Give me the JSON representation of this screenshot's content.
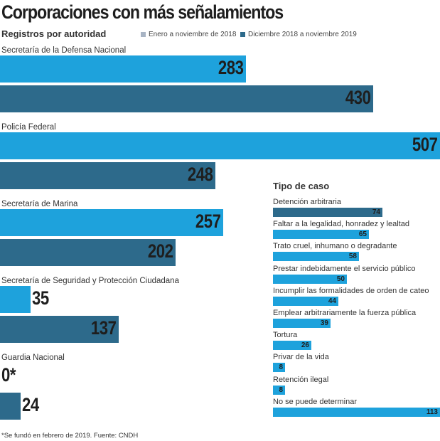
{
  "title": "Corporaciones con más señalamientos",
  "subtitle": "Registros por autoridad",
  "legend": [
    {
      "label": "Enero a noviembre de 2018",
      "color": "#a8b4c4"
    },
    {
      "label": "Diciembre 2018 a noviembre 2019",
      "color": "#2d6a8b"
    }
  ],
  "colors": {
    "series_2018": "#1ea2dc",
    "series_2019": "#2d6a8b",
    "tipo_bar": "#1ea2dc",
    "tipo_bar_first": "#2d6a8b"
  },
  "chart_data": [
    {
      "type": "bar",
      "orientation": "horizontal",
      "title": "Corporaciones con más señalamientos",
      "subtitle": "Registros por autoridad",
      "categories": [
        "Secretaría de la Defensa Nacional",
        "Policía Federal",
        "Secretaría de Marina",
        "Secretaría de Seguridad y Protección Ciudadana",
        "Guardia Nacional"
      ],
      "series": [
        {
          "name": "Enero a noviembre de 2018",
          "values": [
            283,
            507,
            257,
            35,
            0
          ],
          "labels": [
            "283",
            "507",
            "257",
            "35",
            "0*"
          ]
        },
        {
          "name": "Diciembre 2018 a noviembre 2019",
          "values": [
            430,
            248,
            202,
            137,
            24
          ],
          "labels": [
            "430",
            "248",
            "202",
            "137",
            "24"
          ]
        }
      ],
      "xlim": [
        0,
        507
      ]
    },
    {
      "type": "bar",
      "orientation": "horizontal",
      "title": "Tipo de caso",
      "categories": [
        "Detención arbitraria",
        "Faltar a la legalidad, honradez y lealtad",
        "Trato cruel, inhumano o degradante",
        "Prestar indebidamente el servicio público",
        "Incumplir las formalidades de orden de cateo",
        "Emplear arbitrariamente la fuerza pública",
        "Tortura",
        "Privar de la vida",
        "Retención ilegal",
        "No se puede determinar"
      ],
      "values": [
        74,
        65,
        58,
        50,
        44,
        39,
        26,
        8,
        8,
        113
      ],
      "xlim": [
        0,
        113
      ]
    }
  ],
  "footnote": "*Se fundó en febrero de 2019. Fuente: CNDH"
}
